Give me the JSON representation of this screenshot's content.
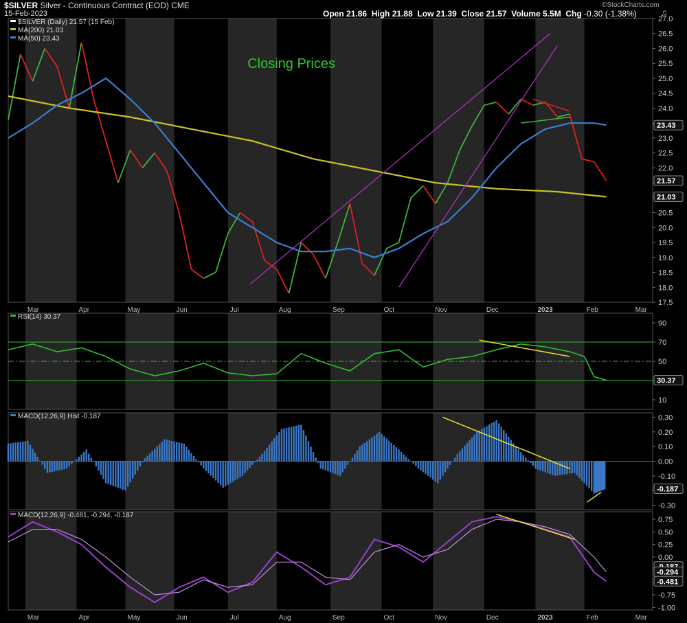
{
  "header": {
    "symbol": "$SILVER",
    "description": "Silver - Continuous Contract (EOD)",
    "exchange": "CME",
    "date": "15-Feb-2023",
    "open_label": "Open",
    "open": "21.86",
    "high_label": "High",
    "high": "21.88",
    "low_label": "Low",
    "low": "21.39",
    "close_label": "Close",
    "close": "21.57",
    "volume_label": "Volume",
    "volume": "5.5M",
    "chg_label": "Chg",
    "chg": "-0.30 (-1.38%)",
    "watermark": "©StockCharts.com"
  },
  "colors": {
    "background": "#000000",
    "up": "#3db33d",
    "down": "#e02020",
    "ma200": "#c9c32a",
    "ma50": "#3a7fd5",
    "trend": "#b030c0",
    "yellow": "#e8e030",
    "rsi": "#2fbf2f",
    "macd_hist": "#3a78c8",
    "macd_purple": "#9a40d0",
    "title_green": "#22cc22"
  },
  "chart_data": [
    {
      "type": "line",
      "title": "Closing Prices",
      "legend": [
        {
          "label": "$SILVER (Daily) 21.57 (15 Feb)",
          "color": "#ffffff"
        },
        {
          "label": "MA(200) 21.03",
          "color": "#c9c32a"
        },
        {
          "label": "MA(50) 23.43",
          "color": "#3a7fd5"
        }
      ],
      "yticks": [
        "17.5",
        "18.0",
        "18.5",
        "19.0",
        "19.5",
        "20.0",
        "20.5",
        "21.0",
        "21.5",
        "22.0",
        "22.5",
        "23.0",
        "23.5",
        "24.0",
        "24.5",
        "25.0",
        "25.5",
        "26.0",
        "26.5",
        "27.0"
      ],
      "ylim": [
        17.5,
        27.0
      ],
      "value_tags": [
        {
          "value": 23.43,
          "label": "23.43"
        },
        {
          "value": 21.57,
          "label": "21.57"
        },
        {
          "value": 21.03,
          "label": "21.03"
        }
      ],
      "series": [
        {
          "name": "$SILVER close",
          "x": [
            0,
            5,
            10,
            15,
            20,
            25,
            30,
            35,
            40,
            45,
            50,
            55,
            60,
            65,
            70,
            75,
            80,
            85,
            90,
            95,
            100,
            105,
            110,
            115,
            120,
            125,
            130,
            135,
            140,
            145,
            150,
            155,
            160,
            165,
            170,
            175,
            180,
            185,
            190,
            195,
            200,
            205,
            210,
            215,
            220,
            225,
            230,
            235,
            240,
            245
          ],
          "values": [
            23.6,
            25.8,
            24.9,
            26.0,
            25.4,
            24.0,
            26.2,
            24.3,
            22.9,
            21.5,
            22.6,
            22.0,
            22.5,
            21.9,
            20.5,
            18.6,
            18.3,
            18.5,
            19.8,
            20.5,
            20.2,
            18.9,
            18.6,
            17.8,
            19.5,
            19.1,
            18.3,
            19.5,
            20.8,
            18.8,
            18.4,
            19.3,
            19.5,
            21.0,
            21.4,
            20.8,
            21.5,
            22.6,
            23.4,
            24.1,
            24.2,
            23.8,
            24.3,
            24.1,
            24.2,
            23.7,
            23.8,
            22.3,
            22.2,
            21.57
          ]
        },
        {
          "name": "MA(200)",
          "x": [
            0,
            25,
            50,
            75,
            100,
            125,
            150,
            175,
            200,
            225,
            245
          ],
          "values": [
            24.4,
            24.0,
            23.7,
            23.3,
            22.9,
            22.3,
            21.9,
            21.5,
            21.3,
            21.2,
            21.03
          ]
        },
        {
          "name": "MA(50)",
          "x": [
            0,
            10,
            20,
            30,
            40,
            50,
            60,
            70,
            80,
            90,
            100,
            110,
            120,
            130,
            140,
            150,
            160,
            170,
            180,
            190,
            200,
            210,
            220,
            230,
            240,
            245
          ],
          "values": [
            23.0,
            23.5,
            24.1,
            24.5,
            25.0,
            24.3,
            23.5,
            22.5,
            21.5,
            20.5,
            20.0,
            19.5,
            19.2,
            19.2,
            19.3,
            19.0,
            19.3,
            19.8,
            20.2,
            21.0,
            22.0,
            22.8,
            23.3,
            23.5,
            23.5,
            23.43
          ]
        }
      ],
      "annotations": [
        "rising channel lower trendline",
        "rising wedge trendline",
        "symmetrical triangle"
      ]
    },
    {
      "type": "line",
      "legend": [
        {
          "label": "RSI(14) 30.37",
          "color": "#2fbf2f"
        }
      ],
      "yticks": [
        "10",
        "30",
        "50",
        "70",
        "90"
      ],
      "ylim": [
        0,
        100
      ],
      "value_tags": [
        {
          "value": 30.37,
          "label": "30.37"
        }
      ],
      "reference_lines": [
        30,
        50,
        70
      ],
      "series": [
        {
          "name": "RSI(14)",
          "x": [
            0,
            10,
            20,
            30,
            40,
            50,
            60,
            70,
            80,
            90,
            100,
            110,
            120,
            130,
            140,
            150,
            160,
            170,
            180,
            190,
            200,
            210,
            220,
            230,
            236,
            240,
            245
          ],
          "values": [
            62,
            68,
            60,
            64,
            55,
            42,
            35,
            40,
            48,
            38,
            35,
            37,
            58,
            48,
            40,
            58,
            62,
            44,
            52,
            55,
            62,
            68,
            65,
            60,
            55,
            34,
            30.37
          ]
        }
      ]
    },
    {
      "type": "bar",
      "legend": [
        {
          "label": "MACD(12,26,9) Hist -0.187",
          "color": "#3a78c8"
        }
      ],
      "yticks": [
        "0.30",
        "0.20",
        "0.10",
        "0.00",
        "-0.10",
        "-0.20",
        "-0.30"
      ],
      "ylim": [
        -0.33,
        0.33
      ],
      "value_tags": [
        {
          "value": -0.187,
          "label": "-0.187"
        }
      ],
      "series": [
        {
          "name": "Histogram",
          "x": [
            0,
            8,
            16,
            24,
            32,
            40,
            48,
            56,
            64,
            72,
            80,
            88,
            96,
            104,
            112,
            120,
            128,
            136,
            144,
            152,
            160,
            168,
            176,
            184,
            192,
            200,
            208,
            216,
            224,
            232,
            240,
            245
          ],
          "values": [
            0.12,
            0.14,
            -0.08,
            -0.05,
            0.08,
            -0.15,
            -0.2,
            0.02,
            0.15,
            0.12,
            -0.05,
            -0.18,
            -0.1,
            0.05,
            0.22,
            0.25,
            -0.05,
            -0.1,
            0.1,
            0.2,
            0.08,
            -0.05,
            -0.15,
            0.05,
            0.2,
            0.28,
            0.1,
            -0.05,
            -0.1,
            -0.08,
            -0.22,
            -0.187
          ]
        }
      ]
    },
    {
      "type": "line",
      "legend": [
        {
          "label": "MACD(12,26,9) -0.481, -0.294, -0.187",
          "color": "#9a40d0"
        }
      ],
      "yticks": [
        "0.75",
        "0.50",
        "0.25",
        "0.00",
        "-0.25",
        "-0.50",
        "-0.75",
        "-1.00"
      ],
      "ylim": [
        -1.05,
        0.9
      ],
      "value_tags": [
        {
          "value": -0.187,
          "label": "-0.187"
        },
        {
          "value": -0.294,
          "label": "-0.294"
        },
        {
          "value": -0.481,
          "label": "-0.481"
        }
      ],
      "series": [
        {
          "name": "MACD",
          "x": [
            0,
            10,
            20,
            30,
            40,
            50,
            60,
            70,
            80,
            90,
            100,
            110,
            120,
            130,
            140,
            150,
            160,
            170,
            180,
            190,
            200,
            210,
            220,
            230,
            240,
            245
          ],
          "values": [
            0.4,
            0.7,
            0.5,
            0.25,
            -0.2,
            -0.6,
            -0.9,
            -0.6,
            -0.4,
            -0.7,
            -0.5,
            0.1,
            -0.2,
            -0.55,
            -0.4,
            0.35,
            0.2,
            -0.1,
            0.3,
            0.7,
            0.8,
            0.7,
            0.55,
            0.4,
            -0.3,
            -0.481
          ]
        },
        {
          "name": "Signal",
          "x": [
            0,
            10,
            20,
            30,
            40,
            50,
            60,
            70,
            80,
            90,
            100,
            110,
            120,
            130,
            140,
            150,
            160,
            170,
            180,
            190,
            200,
            210,
            220,
            230,
            240,
            245
          ],
          "values": [
            0.3,
            0.55,
            0.55,
            0.35,
            0.0,
            -0.4,
            -0.75,
            -0.7,
            -0.45,
            -0.6,
            -0.55,
            -0.1,
            -0.1,
            -0.4,
            -0.45,
            0.1,
            0.25,
            0.0,
            0.15,
            0.55,
            0.75,
            0.7,
            0.6,
            0.45,
            0.0,
            -0.294
          ]
        }
      ]
    }
  ],
  "xaxis": {
    "labels": [
      {
        "x": 7,
        "label": "Mar"
      },
      {
        "x": 28,
        "label": "Apr"
      },
      {
        "x": 48,
        "label": "May"
      },
      {
        "x": 68,
        "label": "Jun"
      },
      {
        "x": 90,
        "label": "Jul"
      },
      {
        "x": 110,
        "label": "Aug"
      },
      {
        "x": 132,
        "label": "Sep"
      },
      {
        "x": 153,
        "label": "Oct"
      },
      {
        "x": 174,
        "label": "Nov"
      },
      {
        "x": 195,
        "label": "Dec"
      },
      {
        "x": 216,
        "label": "2023"
      },
      {
        "x": 236,
        "label": "Feb"
      },
      {
        "x": 256,
        "label": "Mar"
      }
    ],
    "xlim": [
      0,
      264
    ]
  }
}
